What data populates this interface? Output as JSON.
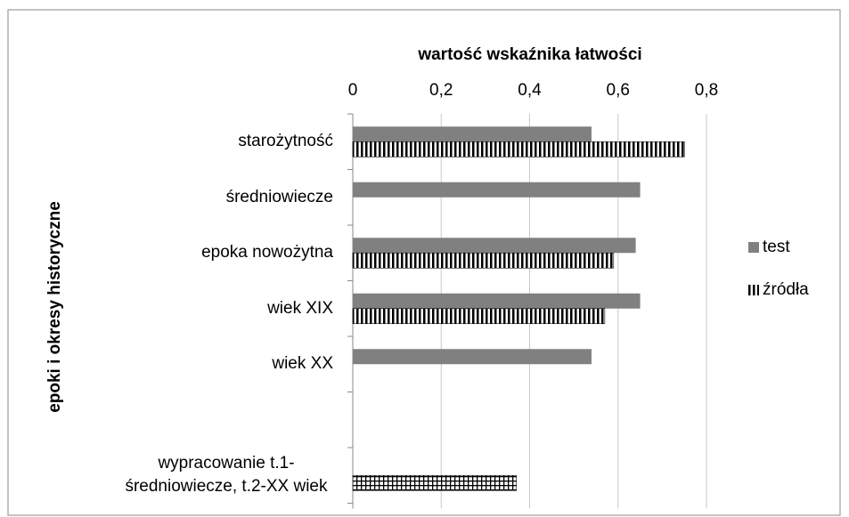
{
  "chart_data": {
    "type": "bar",
    "orientation": "horizontal",
    "xlabel": "wartość wskaźnika łatwości",
    "ylabel": "epoki i okresy historyczne",
    "categories": [
      "starożytność",
      "średniowiecze",
      "epoka nowożytna",
      "wiek XIX",
      "wiek XX",
      null,
      "wypracowanie t.1-średniowiecze, t.2-XX wiek"
    ],
    "series": [
      {
        "name": "test",
        "color": "#808080",
        "pattern": "solid",
        "values": [
          0.54,
          0.65,
          0.64,
          0.65,
          0.54,
          null,
          null
        ]
      },
      {
        "name": "źródła",
        "color": "#000000",
        "pattern": "vertical-stripes",
        "values": [
          0.75,
          null,
          0.59,
          0.57,
          null,
          null,
          null
        ]
      },
      {
        "color": "#000000",
        "pattern": "grid",
        "values": [
          null,
          null,
          null,
          null,
          null,
          null,
          0.37
        ]
      }
    ],
    "xlim": [
      0,
      0.8
    ],
    "xticks": [
      0,
      {
        "value": 0.2,
        "label": "0,2"
      },
      {
        "value": 0.4,
        "label": "0,4"
      },
      {
        "value": 0.6,
        "label": "0,6"
      },
      {
        "value": 0.8,
        "label": "0,8"
      }
    ],
    "grid": true,
    "legend": "right"
  }
}
